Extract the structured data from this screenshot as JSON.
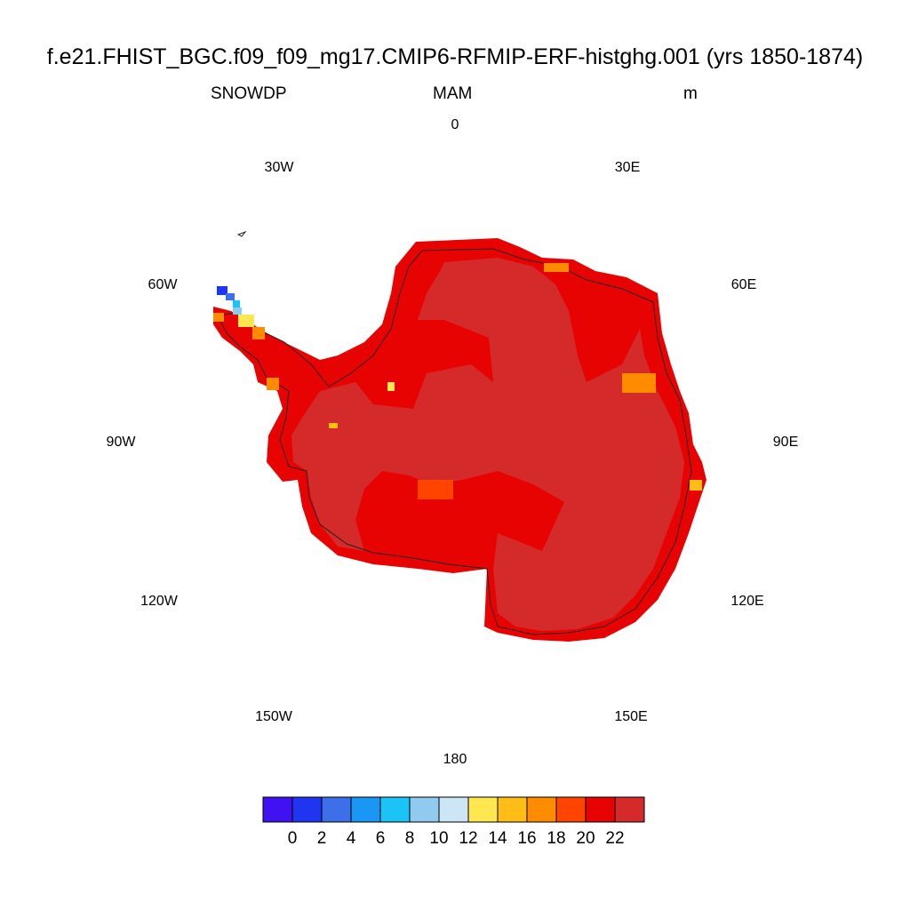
{
  "title": "f.e21.FHIST_BGC.f09_f09_mg17.CMIP6-RFMIP-ERF-histghg.001 (yrs 1850-1874)",
  "subtitle": {
    "left": "SNOWDP",
    "center": "MAM",
    "right": "m"
  },
  "longitude_labels": [
    "0",
    "30E",
    "60E",
    "90E",
    "120E",
    "150E",
    "180",
    "150W",
    "120W",
    "90W",
    "60W",
    "30W"
  ],
  "colorbar": {
    "colors": [
      "#4012f2",
      "#1f35ef",
      "#3c6fe8",
      "#1a97f5",
      "#1bc3f7",
      "#90cbef",
      "#cce6f6",
      "#ffe84f",
      "#ffbd16",
      "#ff8c00",
      "#ff4400",
      "#e80303",
      "#d42a2a"
    ],
    "labels": [
      "0",
      "2",
      "4",
      "6",
      "8",
      "10",
      "12",
      "14",
      "16",
      "18",
      "20",
      "22"
    ]
  },
  "map_colors": {
    "interior": "#d42a2a",
    "margin": "#e80303",
    "coast_line": "#222222"
  }
}
